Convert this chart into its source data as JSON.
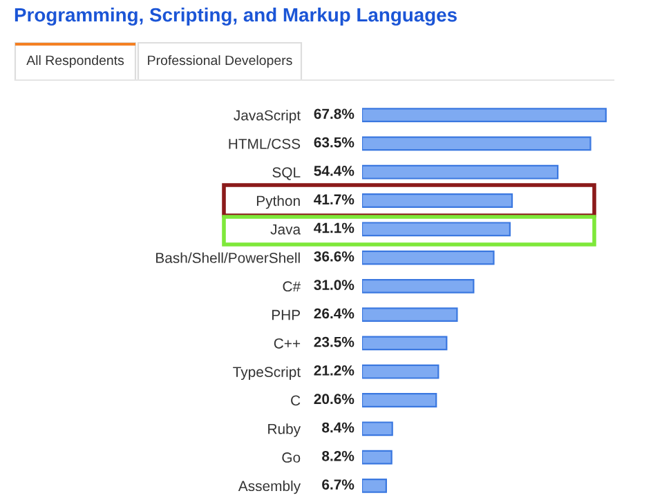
{
  "chart_data": {
    "type": "bar",
    "orientation": "horizontal",
    "title": "Programming, Scripting, and Markup Languages",
    "annotations": [
      "All Respondents",
      "Professional Developers"
    ],
    "categories": [
      "JavaScript",
      "HTML/CSS",
      "SQL",
      "Python",
      "Java",
      "Bash/Shell/PowerShell",
      "C#",
      "PHP",
      "C++",
      "TypeScript",
      "C",
      "Ruby",
      "Go",
      "Assembly"
    ],
    "values": [
      67.8,
      63.5,
      54.4,
      41.7,
      41.1,
      36.6,
      31.0,
      26.4,
      23.5,
      21.2,
      20.6,
      8.4,
      8.2,
      6.7
    ],
    "value_labels": [
      "67.8%",
      "63.5%",
      "54.4%",
      "41.7%",
      "41.1%",
      "36.6%",
      "31.0%",
      "26.4%",
      "23.5%",
      "21.2%",
      "20.6%",
      "8.4%",
      "8.2%",
      "6.7%"
    ],
    "color": "#7eaaf2",
    "grid": false
  }
}
